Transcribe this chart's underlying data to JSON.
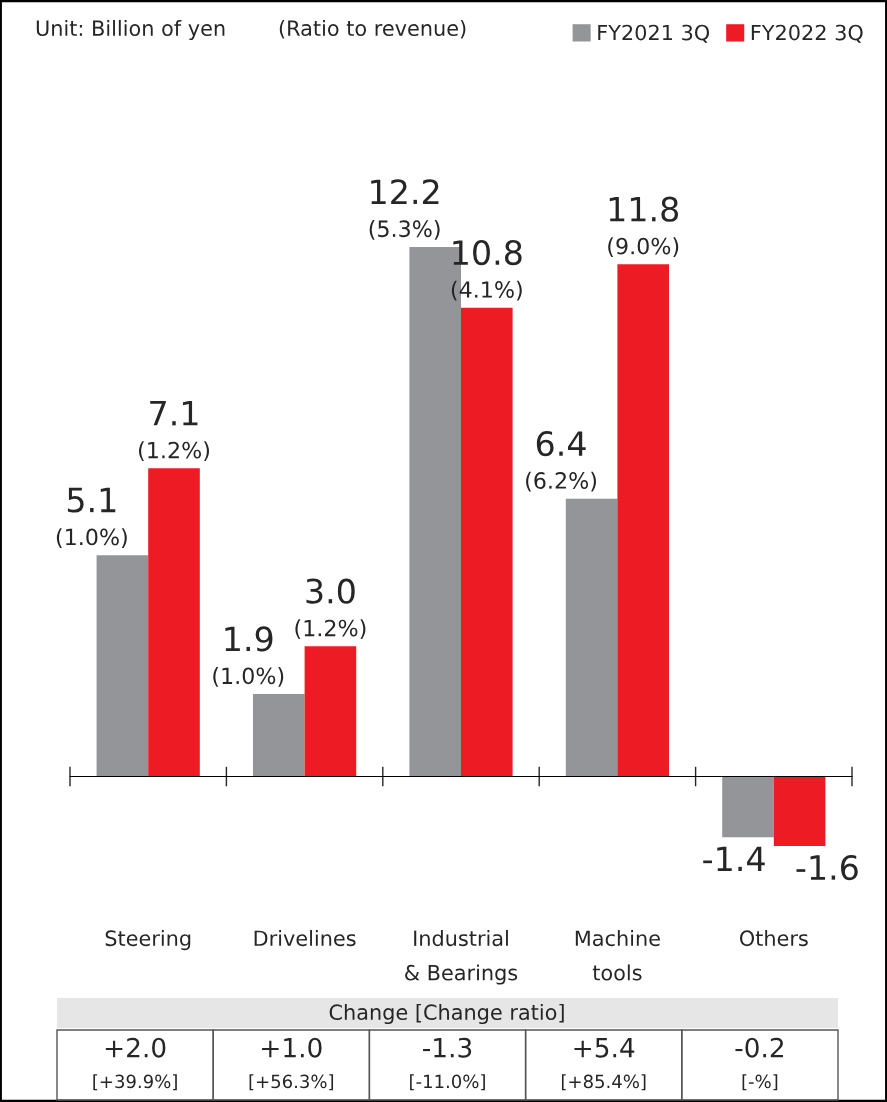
{
  "chart_data": {
    "type": "bar",
    "categories": [
      "Steering",
      "Drivelines",
      "Industrial\n& Bearings",
      "Machine\ntools",
      "Others"
    ],
    "series": [
      {
        "name": "FY2021 3Q",
        "color": "#939598",
        "values": [
          5.1,
          1.9,
          12.2,
          6.4,
          -1.4
        ],
        "value_labels": [
          "5.1\n(1.0%)",
          "1.9\n(1.0%)",
          "12.2\n(5.3%)",
          "6.4\n(6.2%)",
          "-1.4"
        ]
      },
      {
        "name": "FY2022 3Q",
        "color": "#ed1c24",
        "values": [
          7.1,
          3.0,
          10.8,
          11.8,
          -1.6
        ],
        "value_labels": [
          "7.1\n(1.2%)",
          "3.0\n(1.2%)",
          "10.8\n(4.1%)",
          "11.8\n(9.0%)",
          "-1.6"
        ]
      }
    ],
    "tick_labels": "x",
    "legend": "top right",
    "grid": false,
    "annotations": [
      "Unit: Billion of yen",
      "(Ratio to revenue)",
      "Change [Change ratio]",
      "+2.0\n[+39.9%]",
      "+1.0\n[+56.3%]",
      "-1.3\n[-11.0%]",
      "+5.4\n[+85.4%]",
      "-0.2\n[-%]"
    ]
  }
}
